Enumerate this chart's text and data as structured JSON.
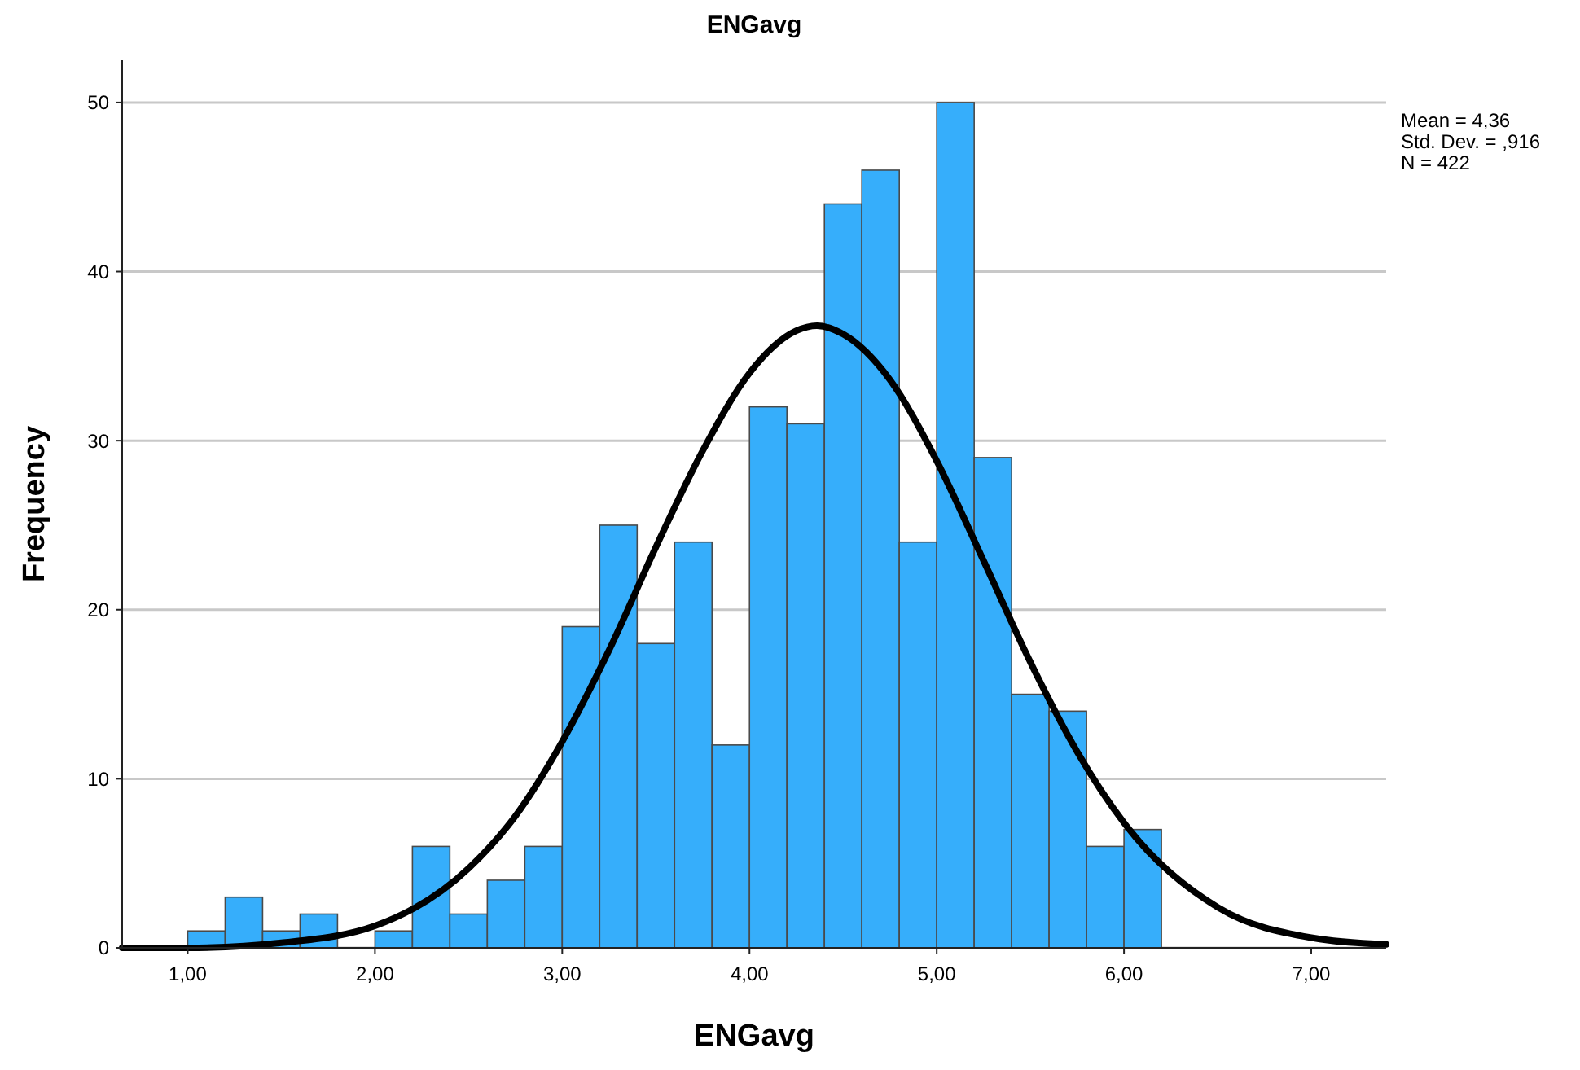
{
  "chart_data": {
    "type": "histogram",
    "title": "ENGavg",
    "xlabel": "ENGavg",
    "ylabel": "Frequency",
    "xlim": [
      0.65,
      7.4
    ],
    "xticks": [
      {
        "value": 1,
        "label": "1,00"
      },
      {
        "value": 2,
        "label": "2,00"
      },
      {
        "value": 3,
        "label": "3,00"
      },
      {
        "value": 4,
        "label": "4,00"
      },
      {
        "value": 5,
        "label": "5,00"
      },
      {
        "value": 6,
        "label": "6,00"
      },
      {
        "value": 7,
        "label": "7,00"
      }
    ],
    "ylim": [
      0,
      52.5
    ],
    "yticks": [
      0,
      10,
      20,
      30,
      40,
      50
    ],
    "grid": "y",
    "annotations": [
      "Mean = 4,36",
      "Std. Dev. = ,916",
      "N = 422"
    ],
    "series": [
      {
        "color": "#36aefb",
        "bins": [
          1.0,
          1.2,
          1.4,
          1.6,
          1.8,
          2.0,
          2.2,
          2.4,
          2.6,
          2.8,
          3.0,
          3.2,
          3.4,
          3.6,
          3.8,
          4.0,
          4.2,
          4.4,
          4.6,
          4.8,
          5.0,
          5.2,
          5.4,
          5.6,
          5.8,
          6.0,
          6.2
        ],
        "values": [
          1,
          3,
          1,
          2,
          0,
          1,
          6,
          2,
          4,
          6,
          19,
          25,
          18,
          24,
          12,
          32,
          31,
          44,
          46,
          24,
          50,
          29,
          15,
          14,
          6,
          7
        ]
      },
      {
        "type": "line",
        "color": "#000000",
        "x": [
          0.65,
          1.0,
          1.5,
          2.0,
          2.5,
          2.75,
          3.0,
          3.25,
          3.5,
          3.75,
          4.0,
          4.25,
          4.36,
          4.5,
          4.75,
          5.0,
          5.25,
          5.5,
          5.75,
          6.0,
          6.5,
          7.0,
          7.4
        ],
        "values": [
          0,
          0,
          0.3,
          1.3,
          4.7,
          7.8,
          12.2,
          17.6,
          23.7,
          29.4,
          34.0,
          36.5,
          36.8,
          36.3,
          33.6,
          28.8,
          22.9,
          16.9,
          11.6,
          7.4,
          2.4,
          0.6,
          0.2
        ]
      }
    ]
  }
}
